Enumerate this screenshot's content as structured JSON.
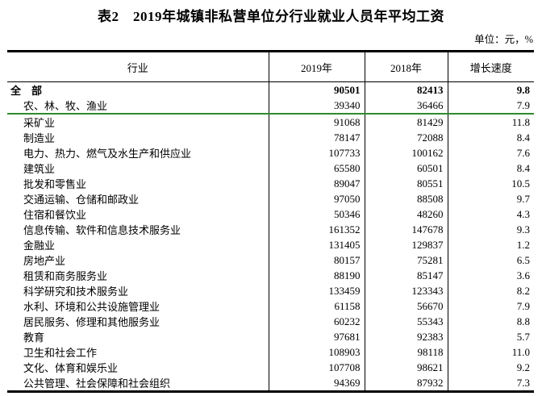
{
  "page": {
    "title": "表2　2019年城镇非私营单位分行业就业人员年平均工资",
    "unit_note": "单位：元，%"
  },
  "colors": {
    "border_black": "#000000",
    "divider_green": "#2e8b2e"
  },
  "table": {
    "columns": [
      "行业",
      "2019年",
      "2018年",
      "增长速度"
    ],
    "rows": [
      {
        "industry": "全　部",
        "y2019": "90501",
        "y2018": "82413",
        "growth": "9.8",
        "bold": true,
        "indent": false,
        "green_rule_below": false
      },
      {
        "industry": "农、林、牧、渔业",
        "y2019": "39340",
        "y2018": "36466",
        "growth": "7.9",
        "bold": false,
        "indent": true,
        "green_rule_below": true
      },
      {
        "industry": "采矿业",
        "y2019": "91068",
        "y2018": "81429",
        "growth": "11.8",
        "bold": false,
        "indent": true,
        "green_rule_below": false
      },
      {
        "industry": "制造业",
        "y2019": "78147",
        "y2018": "72088",
        "growth": "8.4",
        "bold": false,
        "indent": true,
        "green_rule_below": false
      },
      {
        "industry": "电力、热力、燃气及水生产和供应业",
        "y2019": "107733",
        "y2018": "100162",
        "growth": "7.6",
        "bold": false,
        "indent": true,
        "green_rule_below": false
      },
      {
        "industry": "建筑业",
        "y2019": "65580",
        "y2018": "60501",
        "growth": "8.4",
        "bold": false,
        "indent": true,
        "green_rule_below": false
      },
      {
        "industry": "批发和零售业",
        "y2019": "89047",
        "y2018": "80551",
        "growth": "10.5",
        "bold": false,
        "indent": true,
        "green_rule_below": false
      },
      {
        "industry": "交通运输、仓储和邮政业",
        "y2019": "97050",
        "y2018": "88508",
        "growth": "9.7",
        "bold": false,
        "indent": true,
        "green_rule_below": false
      },
      {
        "industry": "住宿和餐饮业",
        "y2019": "50346",
        "y2018": "48260",
        "growth": "4.3",
        "bold": false,
        "indent": true,
        "green_rule_below": false
      },
      {
        "industry": "信息传输、软件和信息技术服务业",
        "y2019": "161352",
        "y2018": "147678",
        "growth": "9.3",
        "bold": false,
        "indent": true,
        "green_rule_below": false
      },
      {
        "industry": "金融业",
        "y2019": "131405",
        "y2018": "129837",
        "growth": "1.2",
        "bold": false,
        "indent": true,
        "green_rule_below": false
      },
      {
        "industry": "房地产业",
        "y2019": "80157",
        "y2018": "75281",
        "growth": "6.5",
        "bold": false,
        "indent": true,
        "green_rule_below": false
      },
      {
        "industry": "租赁和商务服务业",
        "y2019": "88190",
        "y2018": "85147",
        "growth": "3.6",
        "bold": false,
        "indent": true,
        "green_rule_below": false
      },
      {
        "industry": "科学研究和技术服务业",
        "y2019": "133459",
        "y2018": "123343",
        "growth": "8.2",
        "bold": false,
        "indent": true,
        "green_rule_below": false
      },
      {
        "industry": "水利、环境和公共设施管理业",
        "y2019": "61158",
        "y2018": "56670",
        "growth": "7.9",
        "bold": false,
        "indent": true,
        "green_rule_below": false
      },
      {
        "industry": "居民服务、修理和其他服务业",
        "y2019": "60232",
        "y2018": "55343",
        "growth": "8.8",
        "bold": false,
        "indent": true,
        "green_rule_below": false
      },
      {
        "industry": "教育",
        "y2019": "97681",
        "y2018": "92383",
        "growth": "5.7",
        "bold": false,
        "indent": true,
        "green_rule_below": false
      },
      {
        "industry": "卫生和社会工作",
        "y2019": "108903",
        "y2018": "98118",
        "growth": "11.0",
        "bold": false,
        "indent": true,
        "green_rule_below": false
      },
      {
        "industry": "文化、体育和娱乐业",
        "y2019": "107708",
        "y2018": "98621",
        "growth": "9.2",
        "bold": false,
        "indent": true,
        "green_rule_below": false
      },
      {
        "industry": "公共管理、社会保障和社会组织",
        "y2019": "94369",
        "y2018": "87932",
        "growth": "7.3",
        "bold": false,
        "indent": true,
        "green_rule_below": false
      }
    ]
  }
}
